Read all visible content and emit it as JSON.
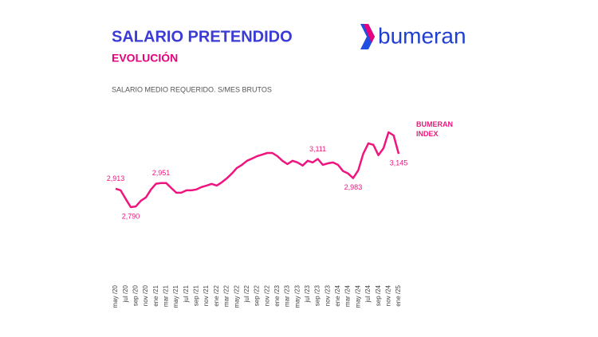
{
  "chart_data": {
    "type": "line",
    "title": "SALARIO PRETENDIDO",
    "subtitle": "EVOLUCIÓN",
    "y_label": "SALARIO MEDIO REQUERIDO. S/MES BRUTOS",
    "brand": "bumeran",
    "categories": [
      "may /20",
      null,
      "jul /20",
      null,
      "sep /20",
      null,
      "nov /20",
      null,
      "ene /21",
      null,
      "mar /21",
      null,
      "may /21",
      null,
      "jul /21",
      null,
      "sep /21",
      null,
      "nov /21",
      null,
      "ene /22",
      null,
      "mar /22",
      null,
      "may /22",
      null,
      "jul /22",
      null,
      "sep /22",
      null,
      "nov /22",
      null,
      "ene /23",
      null,
      "mar /23",
      null,
      "may /23",
      null,
      "jul /23",
      null,
      "sep /23",
      null,
      "nov /23",
      null,
      "ene /24",
      null,
      "mar /24",
      null,
      "may /24",
      null,
      "jul /24",
      null,
      "sep /24",
      null,
      "nov /24",
      null,
      "ene /25"
    ],
    "series": [
      {
        "name": "BUMERAN INDEX",
        "color": "#f0147f",
        "values": [
          2913,
          2902,
          2844,
          2790,
          2795,
          2833,
          2855,
          2908,
          2946,
          2951,
          2951,
          2918,
          2886,
          2886,
          2902,
          2902,
          2908,
          2924,
          2934,
          2945,
          2934,
          2955,
          2982,
          3014,
          3051,
          3072,
          3099,
          3114,
          3130,
          3140,
          3151,
          3151,
          3130,
          3099,
          3077,
          3099,
          3088,
          3067,
          3099,
          3088,
          3111,
          3072,
          3082,
          3088,
          3072,
          3030,
          3014,
          2983,
          3035,
          3146,
          3215,
          3205,
          3136,
          3183,
          3289,
          3268,
          3145
        ],
        "value_labels": [
          "2,913",
          null,
          null,
          "2,790",
          null,
          null,
          null,
          null,
          null,
          "2,951",
          null,
          null,
          null,
          null,
          null,
          null,
          null,
          null,
          null,
          null,
          null,
          null,
          null,
          null,
          null,
          null,
          null,
          null,
          null,
          null,
          null,
          null,
          null,
          null,
          null,
          null,
          null,
          null,
          null,
          null,
          "3,111",
          null,
          null,
          null,
          null,
          null,
          null,
          "2,983",
          null,
          null,
          null,
          null,
          null,
          null,
          null,
          null,
          "3,145"
        ]
      }
    ]
  }
}
